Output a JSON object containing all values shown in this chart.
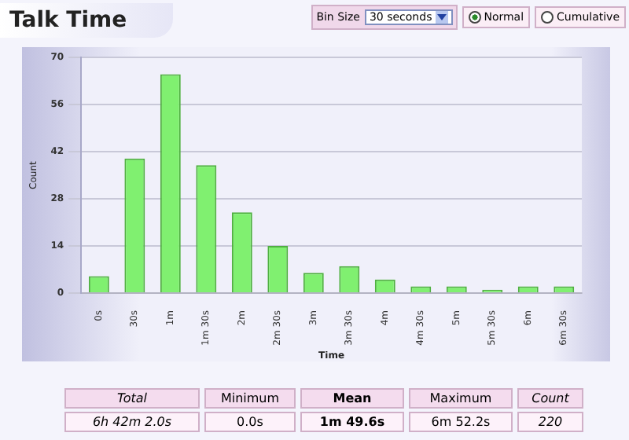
{
  "chart_data": {
    "type": "bar",
    "title": "Talk Time",
    "xlabel": "Time",
    "ylabel": "Count",
    "categories": [
      "0s",
      "30s",
      "1m",
      "1m 30s",
      "2m",
      "2m 30s",
      "3m",
      "3m 30s",
      "4m",
      "4m 30s",
      "5m",
      "5m 30s",
      "6m",
      "6m 30s"
    ],
    "values": [
      5,
      40,
      65,
      38,
      24,
      14,
      6,
      8,
      4,
      2,
      2,
      1,
      2,
      2
    ],
    "color": "#80f070",
    "ylim": [
      0,
      70
    ],
    "yticks": [
      0,
      14,
      28,
      42,
      56,
      70
    ],
    "grid": "y",
    "legend": false,
    "annotations": [
      "Bin Size",
      "30 seconds",
      "Normal",
      "Cumulative",
      "Total",
      "Minimum",
      "Mean",
      "Maximum",
      "Count",
      "6h 42m 2.0s",
      "0.0s",
      "1m 49.6s",
      "6m 52.2s",
      "220"
    ]
  }
}
